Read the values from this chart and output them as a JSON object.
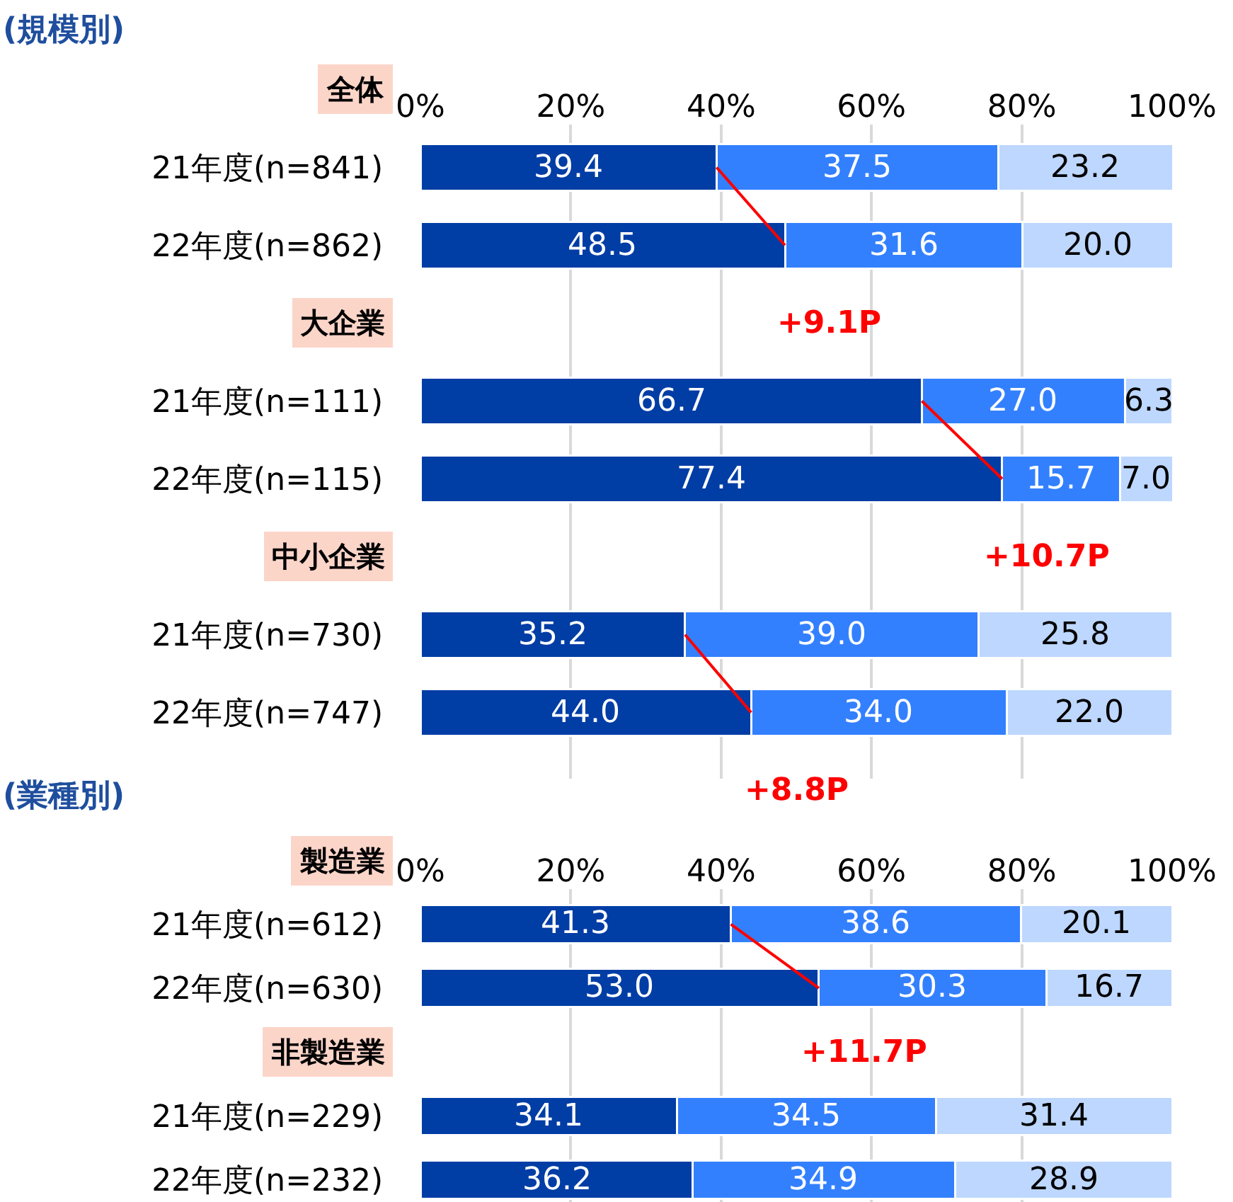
{
  "chart_data": [
    {
      "type": "bar",
      "orientation": "horizontal",
      "stacked": true,
      "title": "(規模別)",
      "categories": [
        "全体",
        "21年度(n=841)",
        "22年度(n=862)",
        "大企業",
        "21年度(n=111)",
        "22年度(n=115)",
        "中小企業",
        "21年度(n=730)",
        "22年度(n=747)"
      ],
      "series": [
        {
          "color": "#003da5",
          "values": [
            null,
            39.4,
            48.5,
            null,
            66.7,
            77.4,
            null,
            35.2,
            44.0
          ],
          "value_labels": [
            null,
            "39.4",
            "48.5",
            null,
            "66.7",
            "77.4",
            null,
            "35.2",
            "44.0"
          ]
        },
        {
          "color": "#3380ff",
          "values": [
            null,
            37.5,
            31.6,
            null,
            27.0,
            15.7,
            null,
            39.0,
            34.0
          ],
          "value_labels": [
            null,
            "37.5",
            "31.6",
            null,
            "27.0",
            "15.7",
            null,
            "39.0",
            "34.0"
          ]
        },
        {
          "color": "#bdd7ff",
          "values": [
            null,
            23.2,
            20.0,
            null,
            6.3,
            7.0,
            null,
            25.8,
            22.0
          ],
          "value_labels": [
            null,
            "23.2",
            "20.0",
            null,
            "6.3",
            "7.0",
            null,
            "25.8",
            "22.0"
          ]
        },
        {
          "type": "line",
          "color": "#ff0000",
          "values": [
            null,
            39.4,
            48.5,
            null,
            66.7,
            77.4,
            null,
            35.2,
            44.0
          ]
        }
      ],
      "xlim": [
        0,
        100
      ],
      "xticks": [
        {
          "value": 0,
          "label": "0%"
        },
        {
          "value": 20,
          "label": "20%"
        },
        {
          "value": 40,
          "label": "40%"
        },
        {
          "value": 60,
          "label": "60%"
        },
        {
          "value": 80,
          "label": "80%"
        },
        {
          "value": 100,
          "label": "100%"
        }
      ],
      "grid": "x",
      "annotations": [
        "+9.1P",
        "+10.7P",
        "+8.8P"
      ]
    },
    {
      "type": "bar",
      "orientation": "horizontal",
      "stacked": true,
      "title": "(業種別)",
      "categories": [
        "製造業",
        "21年度(n=612)",
        "22年度(n=630)",
        "非製造業",
        "21年度(n=229)",
        "22年度(n=232)"
      ],
      "series": [
        {
          "color": "#003da5",
          "values": [
            null,
            41.3,
            53.0,
            null,
            34.1,
            36.2
          ],
          "value_labels": [
            null,
            "41.3",
            "53.0",
            null,
            "34.1",
            "36.2"
          ]
        },
        {
          "color": "#3380ff",
          "values": [
            null,
            38.6,
            30.3,
            null,
            34.5,
            34.9
          ],
          "value_labels": [
            null,
            "38.6",
            "30.3",
            null,
            "34.5",
            "34.9"
          ]
        },
        {
          "color": "#bdd7ff",
          "values": [
            null,
            20.1,
            16.7,
            null,
            31.4,
            28.9
          ],
          "value_labels": [
            null,
            "20.1",
            "16.7",
            null,
            "31.4",
            "28.9"
          ]
        },
        {
          "type": "line",
          "color": "#ff0000",
          "values": [
            null,
            41.3,
            53.0,
            null,
            null,
            null
          ]
        }
      ],
      "xlim": [
        0,
        100
      ],
      "xticks": [
        {
          "value": 0,
          "label": "0%"
        },
        {
          "value": 20,
          "label": "20%"
        },
        {
          "value": 40,
          "label": "40%"
        },
        {
          "value": 60,
          "label": "60%"
        },
        {
          "value": 80,
          "label": "80%"
        },
        {
          "value": 100,
          "label": "100%"
        }
      ],
      "grid": "x",
      "annotations": [
        "+11.7P"
      ]
    }
  ]
}
